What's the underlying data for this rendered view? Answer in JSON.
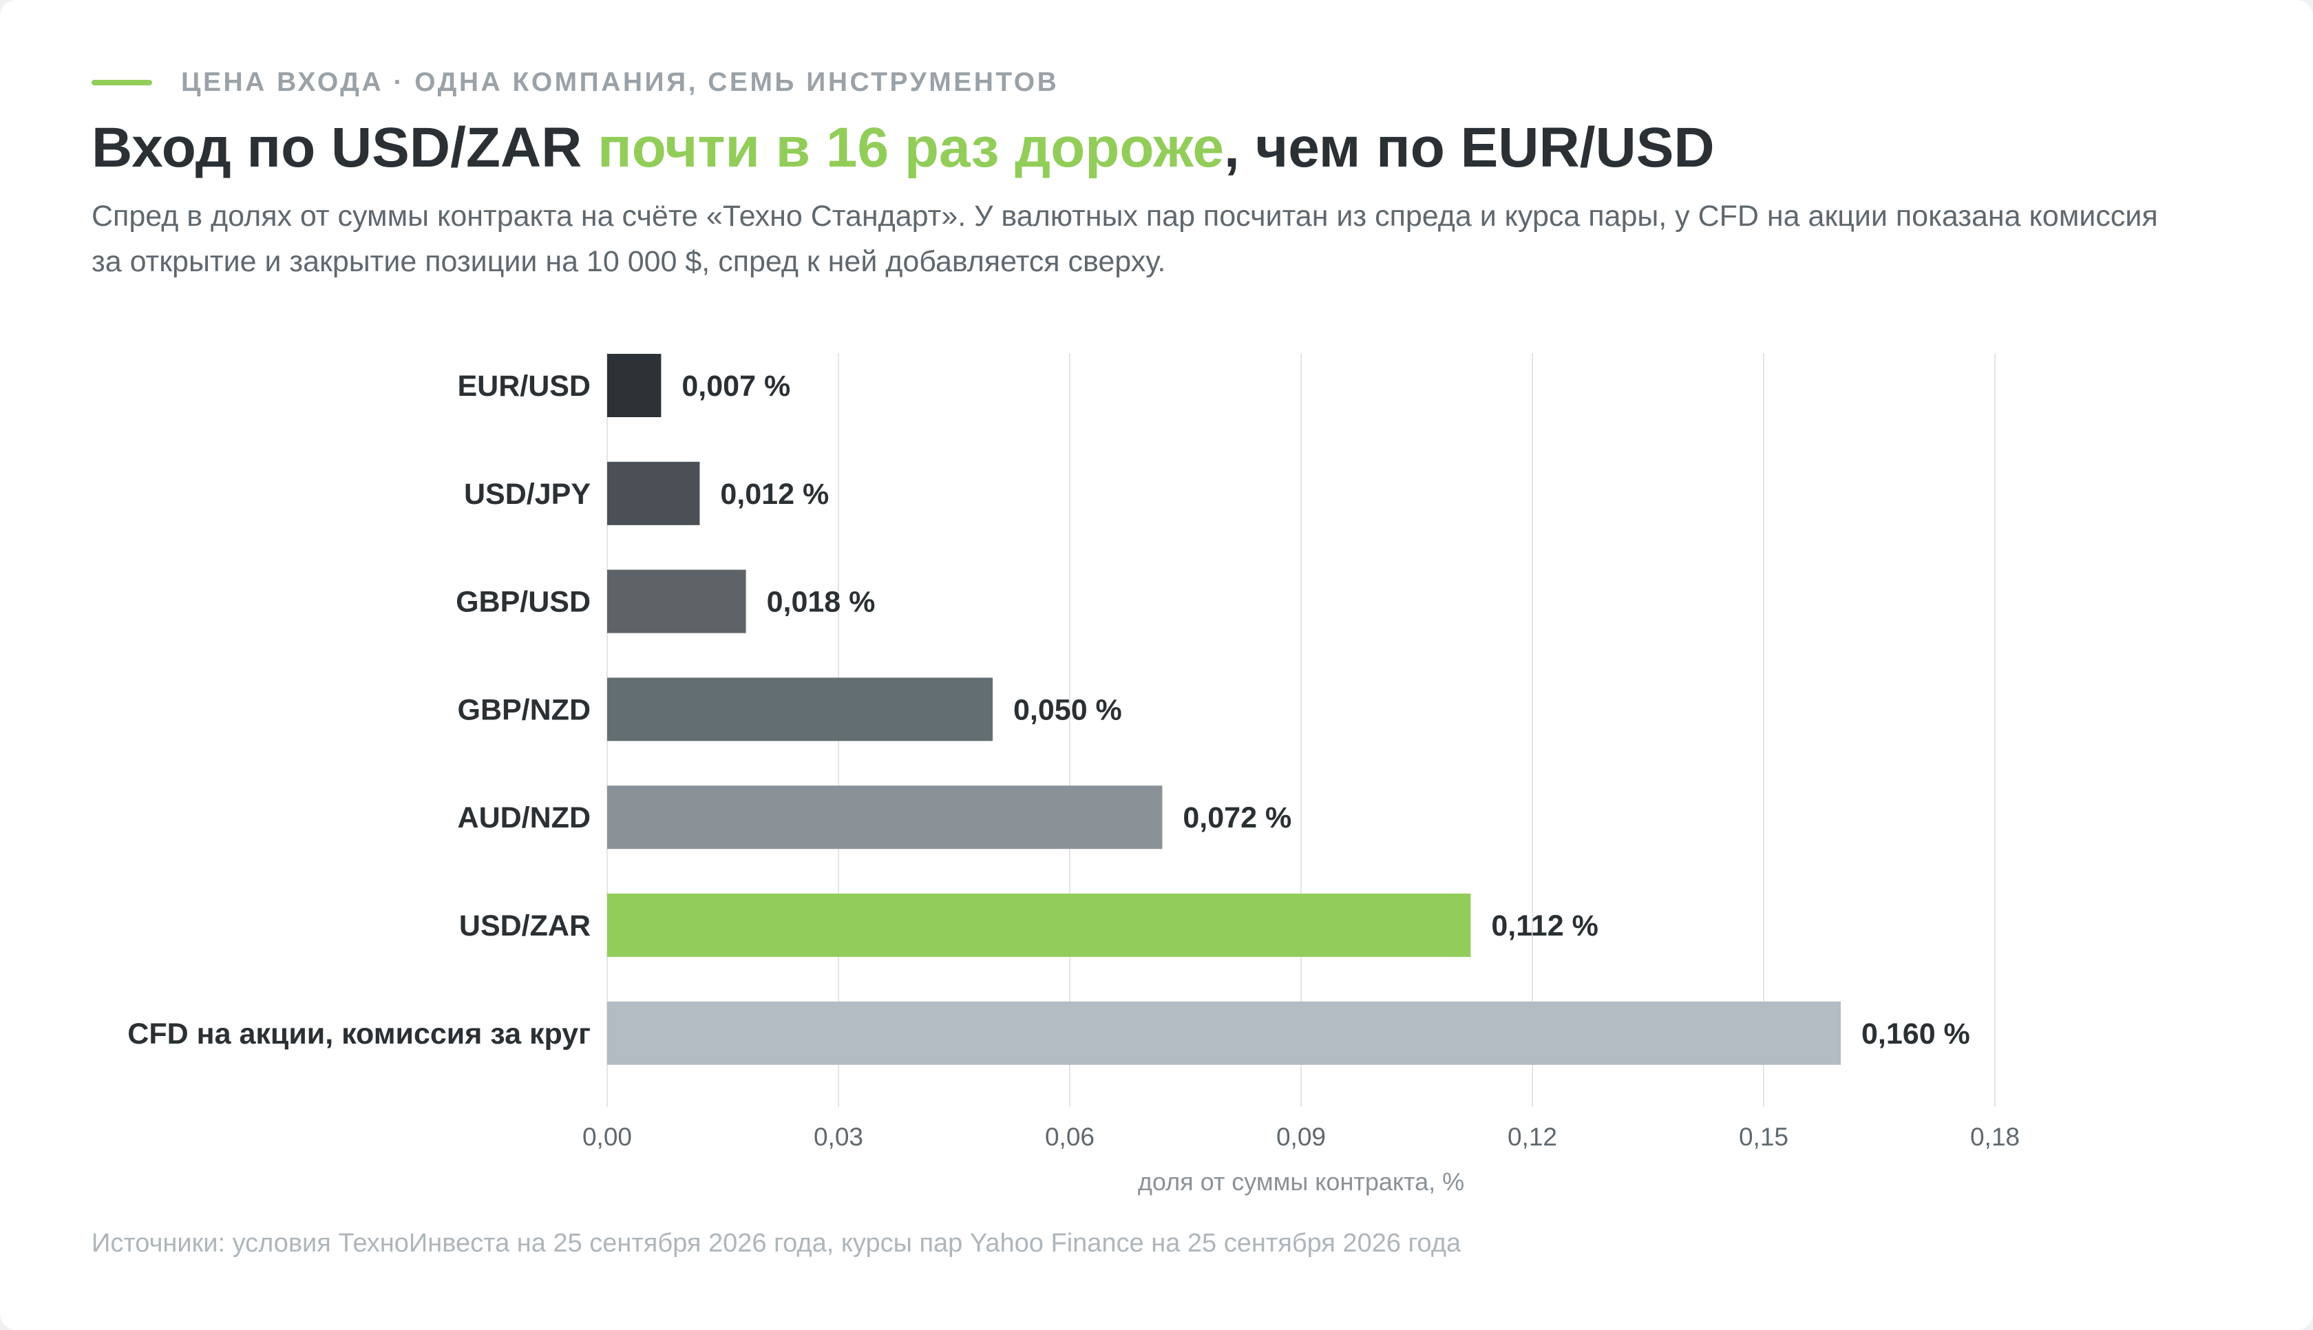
{
  "eyebrow": "ЦЕНА ВХОДА · ОДНА КОМПАНИЯ, СЕМЬ ИНСТРУМЕНТОВ",
  "title": {
    "part1": "Вход по USD/ZAR ",
    "highlight": "почти в 16 раз дороже",
    "part2": ", чем по EUR/USD"
  },
  "subtitle": "Спред в долях от суммы контракта на счёте «Техно Стандарт». У валютных пар посчитан из спреда и курса пары, у CFD на акции показана комиссия за открытие и закрытие позиции на 10 000 $, спред к ней добавляется сверху.",
  "footer": "Источники: условия ТехноИнвеста на 25 сентября 2026 года, курсы пар Yahoo Finance на 25 сентября 2026 года",
  "colors": {
    "accent": "#92cd5a",
    "title_text": "#2a3033",
    "grid": "#e3e5e7"
  },
  "chart_data": {
    "type": "bar",
    "orientation": "horizontal",
    "categories": [
      "EUR/USD",
      "USD/JPY",
      "GBP/USD",
      "GBP/NZD",
      "AUD/NZD",
      "USD/ZAR",
      "CFD на акции, комиссия за круг"
    ],
    "values": [
      0.007,
      0.012,
      0.018,
      0.05,
      0.072,
      0.112,
      0.16
    ],
    "value_labels": [
      "0,007 %",
      "0,012 %",
      "0,018 %",
      "0,050 %",
      "0,072 %",
      "0,112 %",
      "0,160 %"
    ],
    "bar_colors": [
      "#2c3235",
      "#4a5055",
      "#5d6367",
      "#636e73",
      "#8a9298",
      "#92cd5a",
      "#b2bcc2"
    ],
    "xlabel": "доля от суммы контракта, %",
    "xlim": [
      0,
      0.18
    ],
    "xticks": [
      0,
      0.03,
      0.06,
      0.09,
      0.12,
      0.15,
      0.18
    ],
    "xtick_labels": [
      "0,00",
      "0,03",
      "0,06",
      "0,09",
      "0,12",
      "0,15",
      "0,18"
    ],
    "grid": true,
    "legend": "none"
  }
}
